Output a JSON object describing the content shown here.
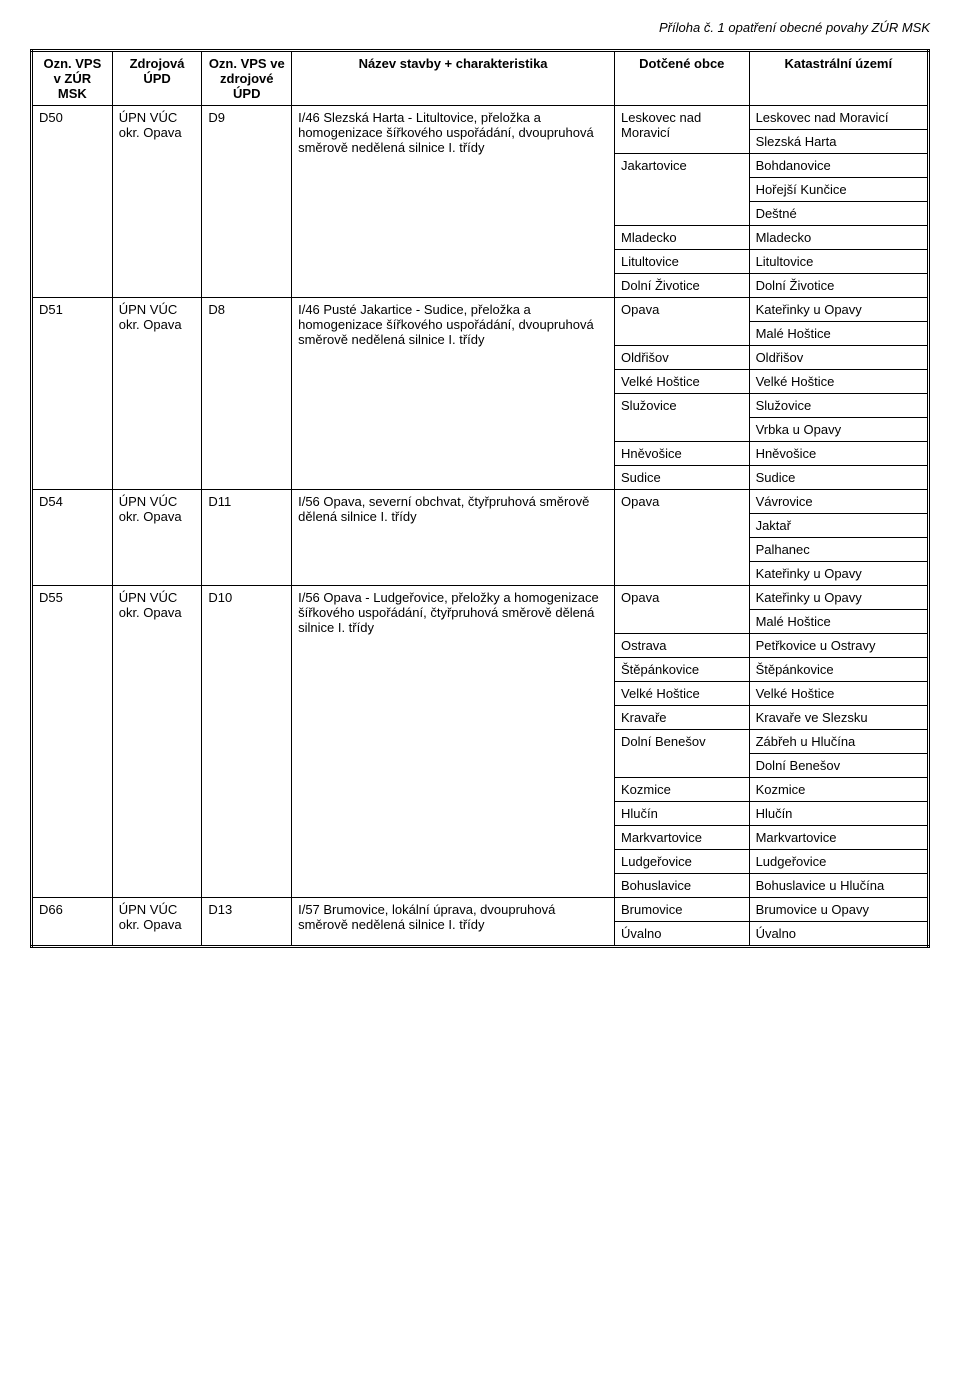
{
  "header_note": "Příloha č. 1 opatření obecné povahy ZÚR MSK",
  "columns": {
    "c1": "Ozn. VPS v ZÚR MSK",
    "c2": "Zdrojová ÚPD",
    "c3": "Ozn. VPS ve zdrojové ÚPD",
    "c4": "Název stavby + charakteristika",
    "c5": "Dotčené obce",
    "c6": "Katastrální území"
  },
  "rows": {
    "d50": {
      "ozn": "D50",
      "src": "ÚPN VÚC okr. Opava",
      "ozn2": "D9",
      "title": "I/46 Slezská Harta - Litultovice, přeložka a homogenizace šířkového uspořádání, dvoupruhová směrově nedělená silnice I. třídy",
      "obce": {
        "o1": "Leskovec nad Moravicí",
        "o2": "Jakartovice",
        "o3": "Mladecko",
        "o4": "Litultovice",
        "o5": "Dolní Životice"
      },
      "kat": {
        "k1": "Leskovec nad Moravicí",
        "k2": "Slezská Harta",
        "k3": "Bohdanovice",
        "k4": "Hořejší Kunčice",
        "k5": "Deštné",
        "k6": "Mladecko",
        "k7": "Litultovice",
        "k8": "Dolní Životice"
      }
    },
    "d51": {
      "ozn": "D51",
      "src": "ÚPN VÚC okr. Opava",
      "ozn2": "D8",
      "title": "I/46 Pusté Jakartice - Sudice, přeložka a homogenizace šířkového uspořádání, dvoupruhová směrově nedělená silnice I. třídy",
      "obce": {
        "o1": "Opava",
        "o2": "Oldřišov",
        "o3": "Velké Hoštice",
        "o4": "Služovice",
        "o5": "Hněvošice",
        "o6": "Sudice"
      },
      "kat": {
        "k1": "Kateřinky u Opavy",
        "k2": "Malé Hoštice",
        "k3": "Oldřišov",
        "k4": "Velké Hoštice",
        "k5": "Služovice",
        "k6": "Vrbka u Opavy",
        "k7": "Hněvošice",
        "k8": "Sudice"
      }
    },
    "d54": {
      "ozn": "D54",
      "src": "ÚPN VÚC okr. Opava",
      "ozn2": "D11",
      "title": "I/56 Opava, severní obchvat, čtyřpruhová směrově dělená silnice I. třídy",
      "obce": {
        "o1": "Opava"
      },
      "kat": {
        "k1": "Vávrovice",
        "k2": "Jaktař",
        "k3": "Palhanec",
        "k4": "Kateřinky u Opavy"
      }
    },
    "d55": {
      "ozn": "D55",
      "src": "ÚPN VÚC okr. Opava",
      "ozn2": "D10",
      "title": "I/56 Opava - Ludgeřovice, přeložky a homogenizace šířkového uspořádání, čtyřpruhová směrově dělená silnice I. třídy",
      "obce": {
        "o1": "Opava",
        "o2": "Ostrava",
        "o3": "Štěpánkovice",
        "o4": "Velké Hoštice",
        "o5": "Kravaře",
        "o6": "Dolní Benešov",
        "o7": "Kozmice",
        "o8": "Hlučín",
        "o9": "Markvartovice",
        "o10": "Ludgeřovice",
        "o11": "Bohuslavice"
      },
      "kat": {
        "k1": "Kateřinky u Opavy",
        "k2": "Malé Hoštice",
        "k3": "Petřkovice u Ostravy",
        "k4": "Štěpánkovice",
        "k5": "Velké Hoštice",
        "k6": "Kravaře ve Slezsku",
        "k7": "Zábřeh u Hlučína",
        "k8": "Dolní Benešov",
        "k9": "Kozmice",
        "k10": "Hlučín",
        "k11": "Markvartovice",
        "k12": "Ludgeřovice",
        "k13": "Bohuslavice u Hlučína"
      }
    },
    "d66": {
      "ozn": "D66",
      "src": "ÚPN VÚC okr. Opava",
      "ozn2": "D13",
      "title": "I/57 Brumovice, lokální úprava, dvoupruhová směrově nedělená silnice I. třídy",
      "obce": {
        "o1": "Brumovice",
        "o2": "Úvalno"
      },
      "kat": {
        "k1": "Brumovice u Opavy",
        "k2": "Úvalno"
      }
    }
  }
}
